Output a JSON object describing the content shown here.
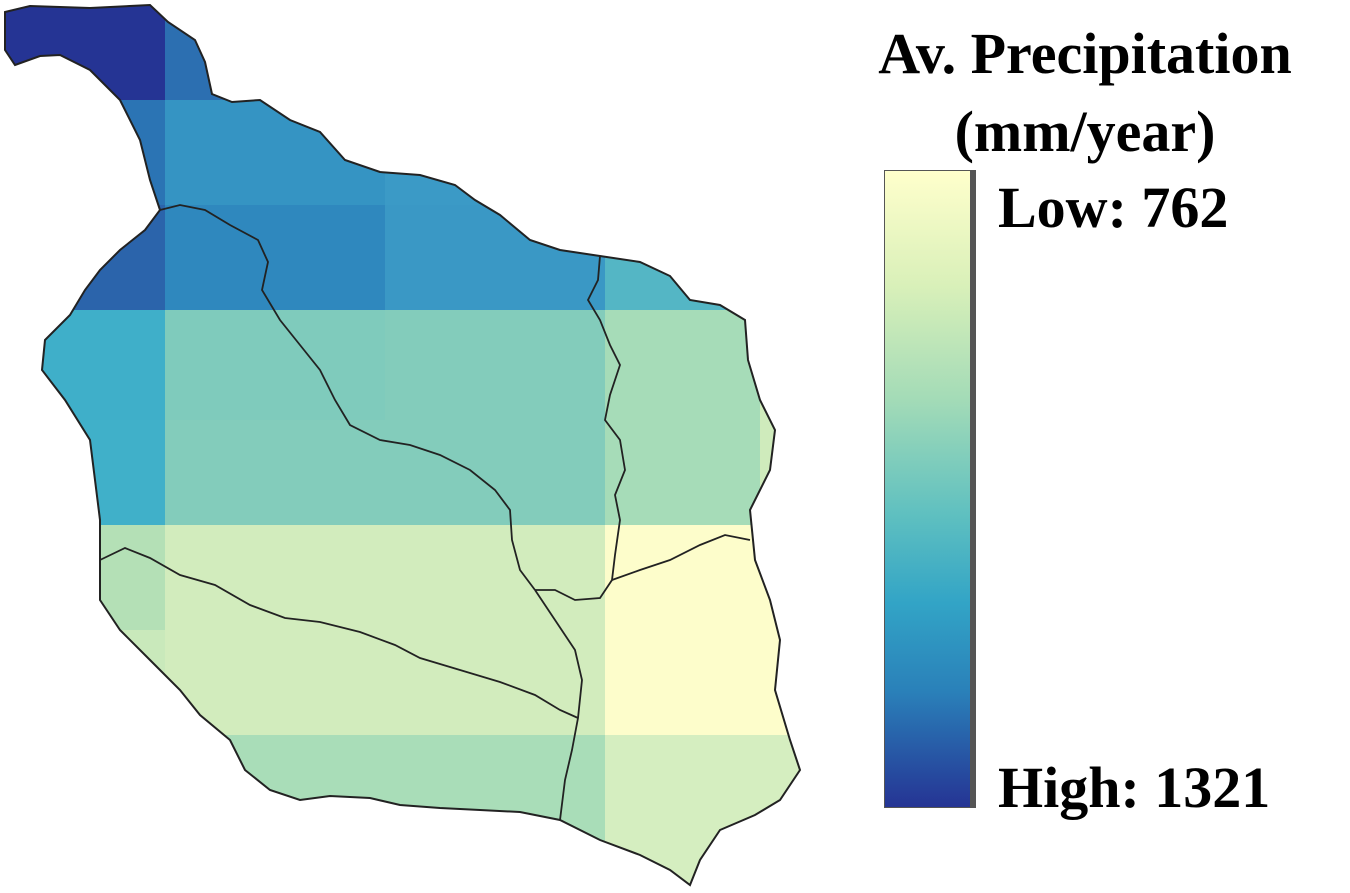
{
  "map": {
    "region_name": "",
    "grid_cells": [
      {
        "row": 0,
        "col": 0,
        "color": "#253494"
      },
      {
        "row": 0,
        "col": 1,
        "color": "#2c6fb1"
      },
      {
        "row": 1,
        "col": 0,
        "color": "#2b74b4"
      },
      {
        "row": 1,
        "col": 1,
        "color": "#3594c3"
      },
      {
        "row": 1,
        "col": 2,
        "color": "#3b9ac6"
      },
      {
        "row": 1,
        "col": 3,
        "color": "#54b6c5"
      },
      {
        "row": 1,
        "col": 4,
        "color": "#71c5c0"
      },
      {
        "row": 2,
        "col": 0,
        "color": "#2b64ab"
      },
      {
        "row": 2,
        "col": 1,
        "color": "#2f88be"
      },
      {
        "row": 2,
        "col": 2,
        "color": "#3a98c5"
      },
      {
        "row": 2,
        "col": 3,
        "color": "#54b6c5"
      },
      {
        "row": 2,
        "col": 4,
        "color": "#71c5c0"
      },
      {
        "row": 3,
        "col": 0,
        "color": "#3fafc9"
      },
      {
        "row": 3,
        "col": 1,
        "color": "#7fcbbc"
      },
      {
        "row": 3,
        "col": 2,
        "color": "#83ccbb"
      },
      {
        "row": 3,
        "col": 3,
        "color": "#a6dcb8"
      },
      {
        "row": 3,
        "col": 4,
        "color": "#cfebbc"
      },
      {
        "row": 4,
        "col": 0,
        "color": "#40b0c9"
      },
      {
        "row": 4,
        "col": 1,
        "color": "#83ccbb"
      },
      {
        "row": 4,
        "col": 2,
        "color": "#83ccbb"
      },
      {
        "row": 4,
        "col": 3,
        "color": "#a6dcb8"
      },
      {
        "row": 4,
        "col": 4,
        "color": "#cfebbc"
      },
      {
        "row": 5,
        "col": 0,
        "color": "#b4e0b6"
      },
      {
        "row": 5,
        "col": 1,
        "color": "#d2ecbd"
      },
      {
        "row": 5,
        "col": 2,
        "color": "#d2ecbd"
      },
      {
        "row": 5,
        "col": 3,
        "color": "#fdfdcb"
      },
      {
        "row": 5,
        "col": 4,
        "color": "#fdfdcb"
      },
      {
        "row": 6,
        "col": 0,
        "color": "#c9e9bb"
      },
      {
        "row": 6,
        "col": 1,
        "color": "#d2ecbd"
      },
      {
        "row": 6,
        "col": 2,
        "color": "#d2ecbd"
      },
      {
        "row": 6,
        "col": 3,
        "color": "#fdfdcb"
      },
      {
        "row": 6,
        "col": 4,
        "color": "#fdfdcb"
      },
      {
        "row": 7,
        "col": 0,
        "color": "#cfebbc"
      },
      {
        "row": 7,
        "col": 1,
        "color": "#a9ddb8"
      },
      {
        "row": 7,
        "col": 2,
        "color": "#a9ddb8"
      },
      {
        "row": 7,
        "col": 3,
        "color": "#d5eec0"
      },
      {
        "row": 7,
        "col": 4,
        "color": "#d5eec0"
      }
    ]
  },
  "legend": {
    "title_line1": "Av. Precipitation",
    "title_line2": "(mm/year)",
    "low_label": "Low: 762",
    "high_label": "High: 1321",
    "low_value": 762,
    "high_value": 1321,
    "low_color": "#ffffcc",
    "high_color": "#253494"
  }
}
